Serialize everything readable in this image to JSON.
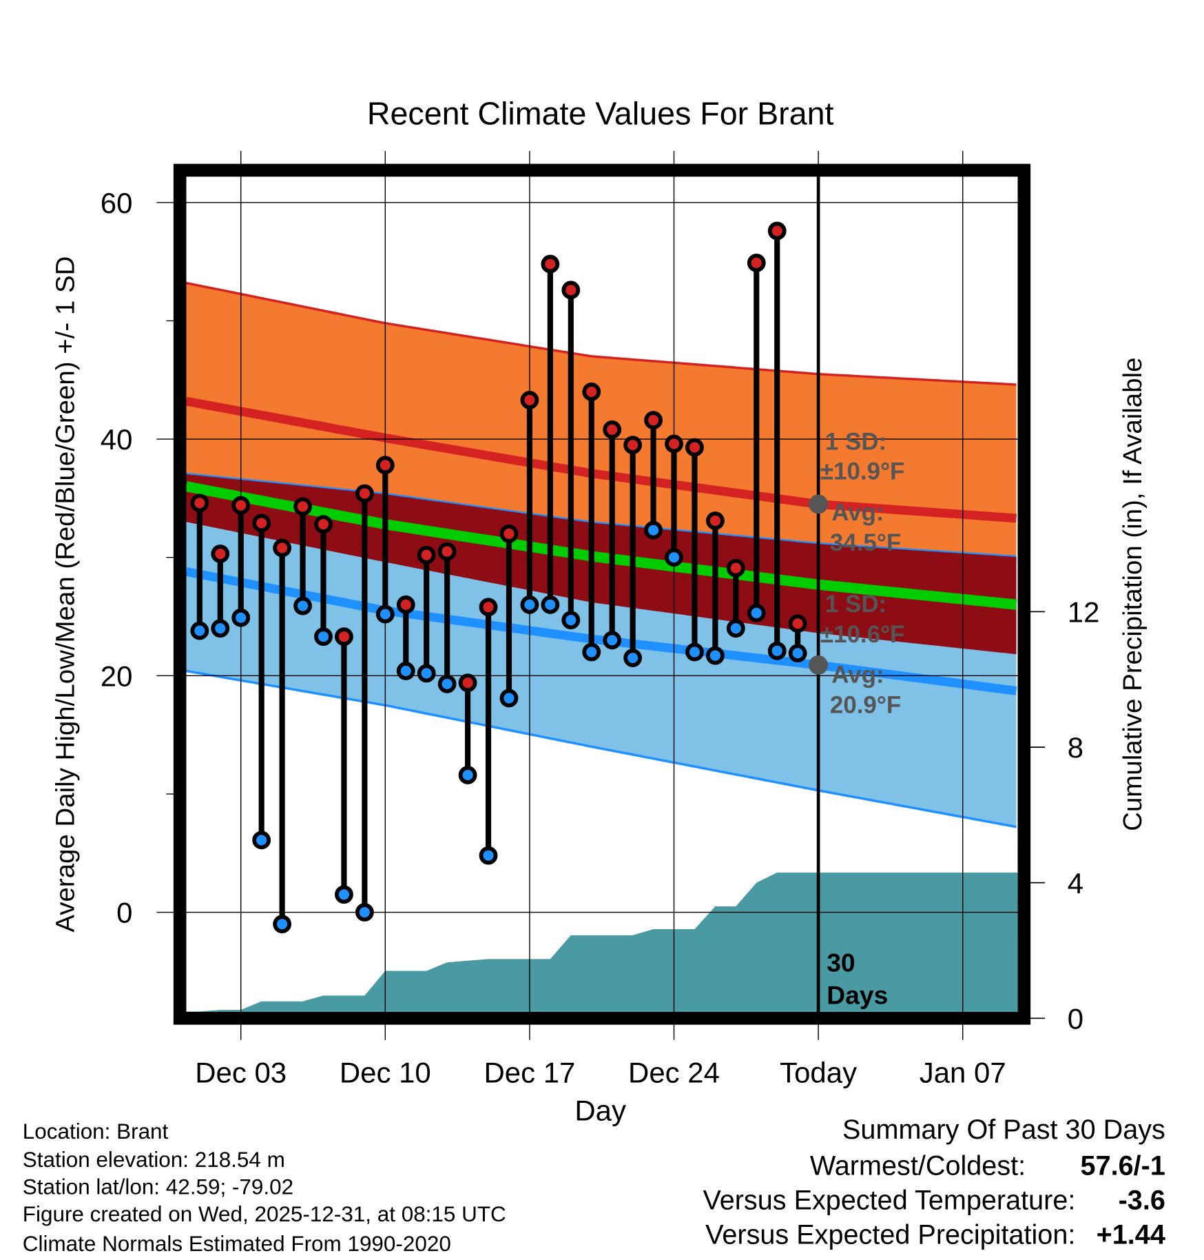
{
  "chart_data": {
    "type": "line",
    "title": "Recent Climate Values For Brant",
    "xlabel": "Day",
    "ylabel": "Average Daily High/Low/Mean (Red/Blue/Green) +/- 1 SD",
    "y2label": "Cumulative Precipitation (in), If Available",
    "ylim": [
      -8.4,
      62.2
    ],
    "y2lim": [
      0,
      12
    ],
    "xlim_day_of_dec": [
      0.35,
      40.66
    ],
    "yticks": [
      0,
      20,
      40,
      60
    ],
    "y2ticks": [
      0,
      4,
      8,
      12
    ],
    "xticks": [
      {
        "day": 3,
        "label": "Dec 03"
      },
      {
        "day": 10,
        "label": "Dec 10"
      },
      {
        "day": 17,
        "label": "Dec 17"
      },
      {
        "day": 24,
        "label": "Dec 24"
      },
      {
        "day": 31,
        "label": "Today"
      },
      {
        "day": 38,
        "label": "Jan 07"
      }
    ],
    "grid": true,
    "today_day": 31,
    "observations": {
      "days": [
        1,
        2,
        3,
        4,
        5,
        6,
        7,
        8,
        9,
        10,
        11,
        12,
        13,
        14,
        15,
        16,
        17,
        18,
        19,
        20,
        21,
        22,
        23,
        24,
        25,
        26,
        27,
        28,
        29,
        30
      ],
      "high": [
        34.6,
        30.3,
        34.4,
        32.9,
        30.8,
        34.3,
        32.8,
        23.3,
        35.4,
        37.8,
        26.0,
        30.2,
        30.5,
        19.4,
        25.8,
        32.0,
        43.3,
        54.8,
        52.6,
        44.0,
        40.8,
        39.5,
        41.6,
        39.6,
        39.3,
        33.1,
        29.1,
        54.9,
        57.6,
        24.4
      ],
      "low": [
        23.8,
        24.0,
        24.9,
        6.1,
        -1.0,
        25.9,
        23.3,
        1.5,
        0.0,
        25.2,
        20.4,
        20.2,
        19.3,
        11.6,
        4.8,
        18.1,
        26.0,
        26.0,
        24.7,
        22.0,
        23.0,
        21.5,
        32.3,
        30.0,
        22.0,
        21.7,
        24.0,
        25.3,
        22.1,
        21.9
      ]
    },
    "normals": {
      "days": [
        0.35,
        10,
        20,
        31,
        40.66
      ],
      "high_avg": [
        43.2,
        40.1,
        37.1,
        34.5,
        33.3
      ],
      "high_upper": [
        53.2,
        49.8,
        47.0,
        45.5,
        44.6
      ],
      "high_lower": [
        33.0,
        29.6,
        26.2,
        23.6,
        21.8
      ],
      "low_avg": [
        28.8,
        25.5,
        23.1,
        20.9,
        18.7
      ],
      "low_upper": [
        37.1,
        35.4,
        33.0,
        31.2,
        30.1
      ],
      "low_lower": [
        20.4,
        17.5,
        14.0,
        10.3,
        7.2
      ]
    },
    "precip_cumulative": {
      "days": [
        0.35,
        1,
        2,
        3,
        4,
        5,
        6,
        7,
        8,
        9,
        10,
        11,
        12,
        13,
        14,
        15,
        16,
        17,
        18,
        19,
        20,
        21,
        22,
        23,
        24,
        25,
        26,
        27,
        28,
        29,
        30,
        40.66
      ],
      "values": [
        0.2,
        0.2,
        0.25,
        0.25,
        0.5,
        0.5,
        0.5,
        0.67,
        0.67,
        0.67,
        1.4,
        1.4,
        1.4,
        1.65,
        1.7,
        1.75,
        1.75,
        1.75,
        1.75,
        2.45,
        2.45,
        2.45,
        2.45,
        2.63,
        2.63,
        2.63,
        3.3,
        3.3,
        4.0,
        4.3,
        4.3,
        4.3
      ]
    },
    "annotations": {
      "high_sd_label": "1 SD:",
      "high_sd_value": "±10.9°F",
      "high_avg_label": "Avg:",
      "high_avg_value": "34.5°F",
      "low_sd_label": "1 SD:",
      "low_sd_value": "±10.6°F",
      "low_avg_label": "Avg:",
      "low_avg_value": "20.9°F",
      "days_count": "30",
      "days_word": "Days"
    },
    "colors": {
      "high_band": "#F47A30",
      "overlap_band": "#8E0C14",
      "low_band": "#80C1E8",
      "high_line": "#D42222",
      "low_line": "#1E90FF",
      "mean_line": "#00CC00",
      "precip": "#4A9AA4",
      "high_dot": "#D42222",
      "low_dot": "#1E90FF"
    }
  },
  "footer": {
    "location": "Location: Brant",
    "elevation": "Station elevation: 218.54 m",
    "latlon": "Station lat/lon: 42.59; -79.02",
    "created": "Figure created on Wed, 2025-12-31, at 08:15 UTC",
    "normals": "Climate Normals Estimated From 1990-2020"
  },
  "summary": {
    "title": "Summary Of Past 30 Days",
    "warmest_label": "Warmest/Coldest:",
    "warmest_value": "57.6/-1",
    "temp_label": "Versus Expected Temperature:",
    "temp_value": "-3.6",
    "temp_color": "#1E90FF",
    "precip_label": "Versus Expected Precipitation:",
    "precip_value": "+1.44",
    "precip_color": "#22BB22"
  }
}
